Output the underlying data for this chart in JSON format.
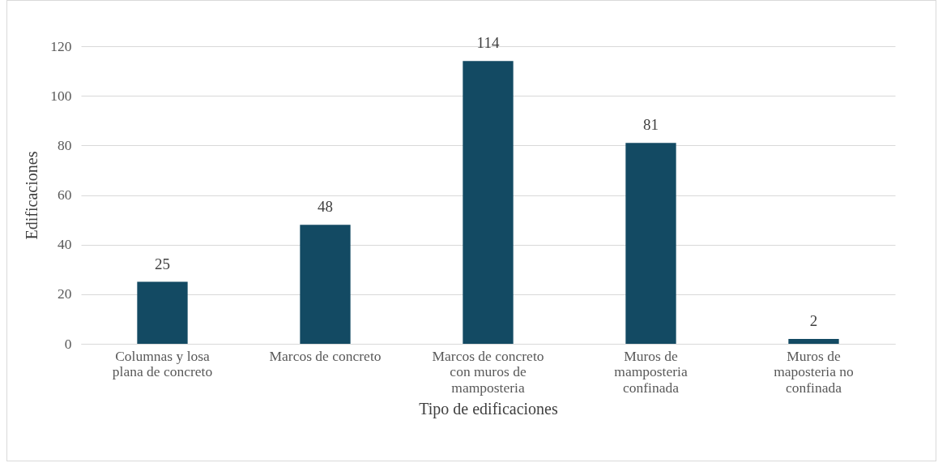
{
  "chart_data": {
    "type": "bar",
    "xlabel": "Tipo de edificaciones",
    "ylabel": "Edificaciones",
    "categories": [
      "Columnas y losa plana de concreto",
      "Marcos de concreto",
      "Marcos de concreto con muros de mamposteria",
      "Muros de mamposteria confinada",
      "Muros de maposteria no confinada"
    ],
    "values": [
      25,
      48,
      114,
      81,
      2
    ],
    "color": "#134a63",
    "ylim": [
      0,
      120
    ],
    "yticks": [
      0,
      20,
      40,
      60,
      80,
      100,
      120
    ],
    "grid": "y",
    "data_labels": true
  }
}
